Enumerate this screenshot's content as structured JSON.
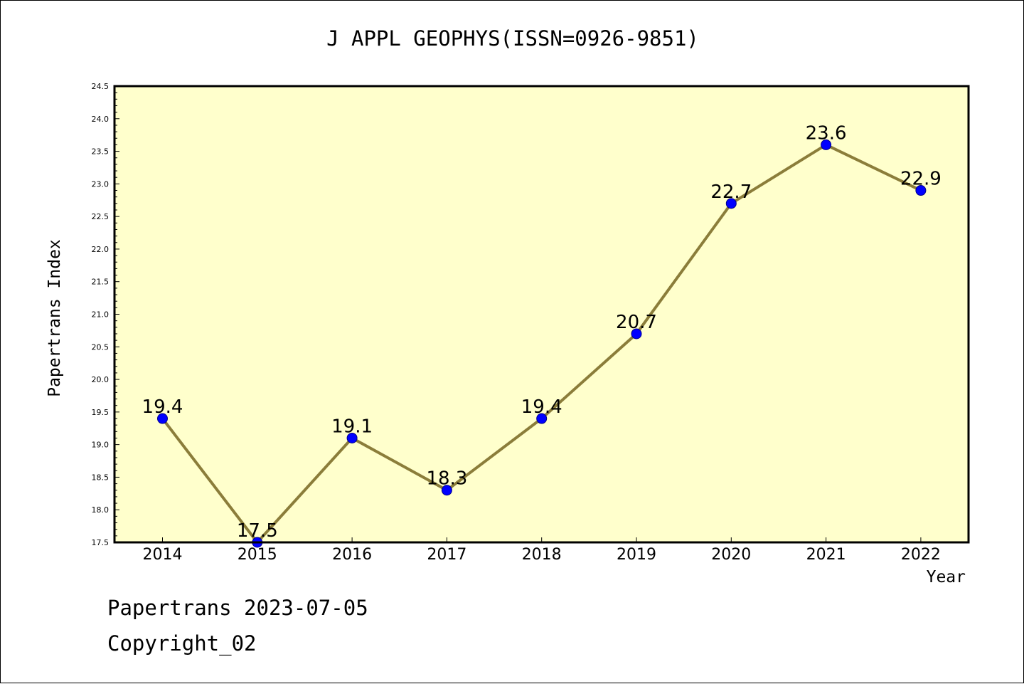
{
  "chart_data": {
    "type": "line",
    "title": "J APPL GEOPHYS(ISSN=0926-9851)",
    "xlabel": "Year",
    "ylabel": "Papertrans Index",
    "categories": [
      "2014",
      "2015",
      "2016",
      "2017",
      "2018",
      "2019",
      "2020",
      "2021",
      "2022"
    ],
    "values": [
      19.4,
      17.5,
      19.1,
      18.3,
      19.4,
      20.7,
      22.7,
      23.6,
      22.9
    ],
    "data_labels": [
      "19.4",
      "17.5",
      "19.1",
      "18.3",
      "19.4",
      "20.7",
      "22.7",
      "23.6",
      "22.9"
    ],
    "ylim": [
      17.5,
      24.5
    ],
    "y_ticks": [
      "17.5",
      "18.0",
      "18.5",
      "19.0",
      "19.5",
      "20.0",
      "20.5",
      "21.0",
      "21.5",
      "22.0",
      "22.5",
      "23.0",
      "23.5",
      "24.0",
      "24.5"
    ],
    "grid": false,
    "colors": {
      "plot_background": "#ffffcc",
      "line": "#8b7d3a",
      "marker": "#0000ff"
    }
  },
  "footer": {
    "date_text": "Papertrans 2023-07-05",
    "copyright_text": "Copyright_02"
  }
}
